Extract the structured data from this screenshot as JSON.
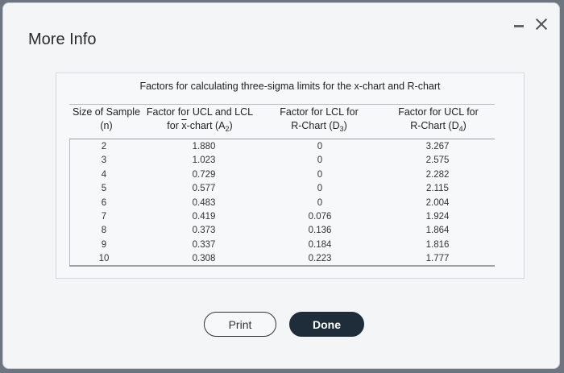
{
  "dialog": {
    "title": "More Info",
    "minimize_label": "minimize",
    "close_label": "close"
  },
  "table": {
    "caption": "Factors for calculating three-sigma limits for the x-chart and R-chart",
    "headers": {
      "n_line1": "Size of Sample",
      "n_line2": "(n)",
      "a2_line1": "Factor for UCL and LCL",
      "a2_line2_pre": "for ",
      "a2_line2_x": "x",
      "a2_line2_mid": "-chart (A",
      "a2_sub": "2",
      "a2_post": ")",
      "d3_line1": "Factor for LCL for",
      "d3_line2_pre": "R-Chart (D",
      "d3_sub": "3",
      "d3_post": ")",
      "d4_line1": "Factor for UCL for",
      "d4_line2_pre": "R-Chart (D",
      "d4_sub": "4",
      "d4_post": ")"
    },
    "rows": [
      {
        "n": "2",
        "a2": "1.880",
        "d3": "0",
        "d4": "3.267"
      },
      {
        "n": "3",
        "a2": "1.023",
        "d3": "0",
        "d4": "2.575"
      },
      {
        "n": "4",
        "a2": "0.729",
        "d3": "0",
        "d4": "2.282"
      },
      {
        "n": "5",
        "a2": "0.577",
        "d3": "0",
        "d4": "2.115"
      },
      {
        "n": "6",
        "a2": "0.483",
        "d3": "0",
        "d4": "2.004"
      },
      {
        "n": "7",
        "a2": "0.419",
        "d3": "0.076",
        "d4": "1.924"
      },
      {
        "n": "8",
        "a2": "0.373",
        "d3": "0.136",
        "d4": "1.864"
      },
      {
        "n": "9",
        "a2": "0.337",
        "d3": "0.184",
        "d4": "1.816"
      },
      {
        "n": "10",
        "a2": "0.308",
        "d3": "0.223",
        "d4": "1.777"
      }
    ]
  },
  "buttons": {
    "print": "Print",
    "done": "Done"
  },
  "colors": {
    "done_bg": "#1f2d3a",
    "backdrop": "#6d7580"
  }
}
